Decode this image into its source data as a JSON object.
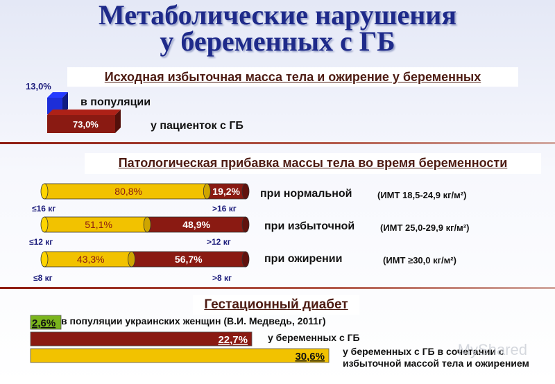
{
  "title_line1": "Метаболические нарушения",
  "title_line2": "у беременных с ГБ",
  "section1": {
    "banner": "Исходная избыточная масса тела и ожирение у беременных",
    "bars": [
      {
        "label": "в популяции",
        "value": 13.0,
        "value_text": "13,0%",
        "color": "#1d2ed8"
      },
      {
        "label": "у пациенток с ГБ",
        "value": 73.0,
        "value_text": "73,0%",
        "color": "#8a1a12"
      }
    ]
  },
  "section2": {
    "banner": "Патологическая прибавка массы тела во время беременности",
    "rows": [
      {
        "label": "при нормальной",
        "bmi": "(ИМТ 18,5-24,9 кг/м²)",
        "low_value": 80.8,
        "low_text": "80,8%",
        "high_value": 19.2,
        "high_text": "19,2%",
        "low_caption": "≤16 кг",
        "high_caption": ">16 кг"
      },
      {
        "label": "при избыточной",
        "bmi": "(ИМТ 25,0-29,9 кг/м²)",
        "low_value": 51.1,
        "low_text": "51,1%",
        "high_value": 48.9,
        "high_text": "48,9%",
        "low_caption": "≤12 кг",
        "high_caption": ">12 кг"
      },
      {
        "label": "при ожирении",
        "bmi": "(ИМТ ≥30,0 кг/м²)",
        "low_value": 43.3,
        "low_text": "43,3%",
        "high_value": 56.7,
        "high_text": "56,7%",
        "low_caption": "≤8 кг",
        "high_caption": ">8 кг"
      }
    ],
    "colors": {
      "low": "#f2c200",
      "high": "#8a1a12"
    }
  },
  "section3": {
    "banner": "Гестационный диабет",
    "bars": [
      {
        "label": "в популяции украинских женщин (В.И. Медведь, 2011г)",
        "value": 2.6,
        "value_text": "2,6%",
        "color": "#7ab51d"
      },
      {
        "label": "у беременных с ГБ",
        "value": 22.7,
        "value_text": "22,7%",
        "color": "#8a1a12"
      },
      {
        "label": "у беременных с ГБ в сочетании с избыточной массой тела и ожирением",
        "value": 30.6,
        "value_text": "30,6%",
        "color": "#f2c200"
      }
    ]
  },
  "chart_data": [
    {
      "type": "bar",
      "title": "Исходная избыточная масса тела и ожирение у беременных",
      "categories": [
        "в популяции",
        "у пациенток с ГБ"
      ],
      "values": [
        13.0,
        73.0
      ]
    },
    {
      "type": "bar",
      "title": "Патологическая прибавка массы тела во время беременности",
      "categories": [
        "при нормальной (ИМТ 18,5-24,9 кг/м²)",
        "при избыточной (ИМТ 25,0-29,9 кг/м²)",
        "при ожирении (ИМТ ≥30,0 кг/м²)"
      ],
      "stacked": true,
      "series": [
        {
          "values": [
            80.8,
            51.1,
            43.3
          ]
        },
        {
          "values": [
            19.2,
            48.9,
            56.7
          ]
        }
      ]
    },
    {
      "type": "bar",
      "title": "Гестационный диабет",
      "categories": [
        "в популяции украинских женщин (В.И. Медведь, 2011г)",
        "у беременных с ГБ",
        "у беременных с ГБ в сочетании с избыточной массой тела и ожирением"
      ],
      "values": [
        2.6,
        22.7,
        30.6
      ]
    }
  ],
  "watermark": "MyShared"
}
